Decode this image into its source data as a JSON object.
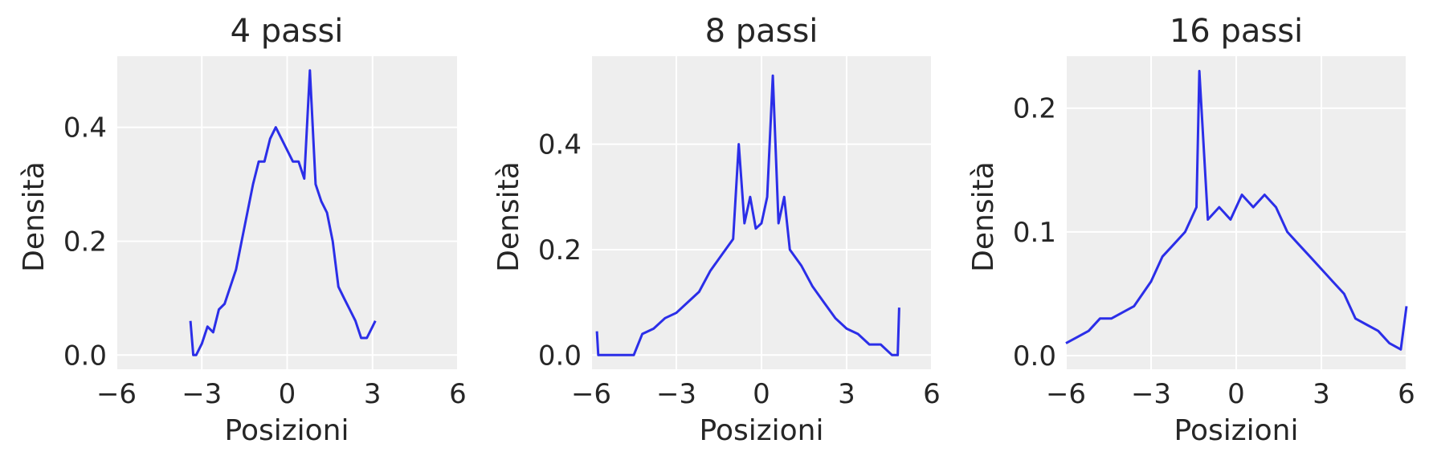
{
  "figure": {
    "colors": {
      "series": "#2b2ee8",
      "background": "#eeeeee",
      "grid": "#ffffff",
      "text": "#262626"
    }
  },
  "chart_data": [
    {
      "type": "line",
      "title": "4 passi",
      "xlabel": "Posizioni",
      "ylabel": "Densità",
      "xlim": [
        -6,
        6
      ],
      "ylim": [
        -0.025,
        0.525
      ],
      "xticks": [
        -6,
        -3,
        0,
        3,
        6
      ],
      "xtick_labels": [
        "−6",
        "−3",
        "0",
        "3",
        "6"
      ],
      "yticks": [
        0.0,
        0.2,
        0.4
      ],
      "ytick_labels": [
        "0.0",
        "0.2",
        "0.4"
      ],
      "grid": true,
      "x": [
        -3.4,
        -3.3,
        -3.2,
        -3.0,
        -2.8,
        -2.6,
        -2.4,
        -2.2,
        -2.0,
        -1.8,
        -1.6,
        -1.4,
        -1.2,
        -1.0,
        -0.8,
        -0.6,
        -0.4,
        -0.2,
        0.0,
        0.2,
        0.4,
        0.6,
        0.8,
        1.0,
        1.2,
        1.4,
        1.6,
        1.8,
        2.0,
        2.2,
        2.4,
        2.6,
        2.8,
        3.0,
        3.1
      ],
      "y": [
        0.06,
        0.0,
        0.0,
        0.02,
        0.05,
        0.04,
        0.08,
        0.09,
        0.12,
        0.15,
        0.2,
        0.25,
        0.3,
        0.34,
        0.34,
        0.38,
        0.4,
        0.38,
        0.36,
        0.34,
        0.34,
        0.31,
        0.5,
        0.3,
        0.27,
        0.25,
        0.2,
        0.12,
        0.1,
        0.08,
        0.06,
        0.03,
        0.03,
        0.05,
        0.06
      ]
    },
    {
      "type": "line",
      "title": "8 passi",
      "xlabel": "Posizioni",
      "ylabel": "Densità",
      "xlim": [
        -6,
        6
      ],
      "ylim": [
        -0.027,
        0.567
      ],
      "xticks": [
        -6,
        -3,
        0,
        3,
        6
      ],
      "xtick_labels": [
        "−6",
        "−3",
        "0",
        "3",
        "6"
      ],
      "yticks": [
        0.0,
        0.2,
        0.4
      ],
      "ytick_labels": [
        "0.0",
        "0.2",
        "0.4"
      ],
      "grid": true,
      "x": [
        -5.8,
        -5.75,
        -4.5,
        -4.2,
        -3.8,
        -3.4,
        -3.0,
        -2.6,
        -2.2,
        -1.8,
        -1.4,
        -1.0,
        -0.8,
        -0.6,
        -0.4,
        -0.2,
        0.0,
        0.2,
        0.4,
        0.6,
        0.8,
        1.0,
        1.4,
        1.8,
        2.2,
        2.6,
        3.0,
        3.4,
        3.8,
        4.2,
        4.6,
        4.8,
        4.85
      ],
      "y": [
        0.045,
        0.0,
        0.0,
        0.04,
        0.05,
        0.07,
        0.08,
        0.1,
        0.12,
        0.16,
        0.19,
        0.22,
        0.4,
        0.25,
        0.3,
        0.24,
        0.25,
        0.3,
        0.53,
        0.25,
        0.3,
        0.2,
        0.17,
        0.13,
        0.1,
        0.07,
        0.05,
        0.04,
        0.02,
        0.02,
        0.0,
        0.0,
        0.09
      ]
    },
    {
      "type": "line",
      "title": "16 passi",
      "xlabel": "Posizioni",
      "ylabel": "Densità",
      "xlim": [
        -6,
        6
      ],
      "ylim": [
        -0.011,
        0.242
      ],
      "xticks": [
        -6,
        -3,
        0,
        3,
        6
      ],
      "xtick_labels": [
        "−6",
        "−3",
        "0",
        "3",
        "6"
      ],
      "yticks": [
        0.0,
        0.1,
        0.2
      ],
      "ytick_labels": [
        "0.0",
        "0.1",
        "0.2"
      ],
      "grid": true,
      "x": [
        -6.0,
        -5.6,
        -5.2,
        -4.8,
        -4.4,
        -4.0,
        -3.6,
        -3.3,
        -3.0,
        -2.6,
        -2.2,
        -1.8,
        -1.4,
        -1.3,
        -1.0,
        -0.6,
        -0.2,
        0.2,
        0.6,
        1.0,
        1.4,
        1.8,
        2.2,
        2.6,
        3.0,
        3.4,
        3.8,
        4.2,
        4.6,
        5.0,
        5.4,
        5.8,
        6.0
      ],
      "y": [
        0.01,
        0.015,
        0.02,
        0.03,
        0.03,
        0.035,
        0.04,
        0.05,
        0.06,
        0.08,
        0.09,
        0.1,
        0.12,
        0.23,
        0.11,
        0.12,
        0.11,
        0.13,
        0.12,
        0.13,
        0.12,
        0.1,
        0.09,
        0.08,
        0.07,
        0.06,
        0.05,
        0.03,
        0.025,
        0.02,
        0.01,
        0.005,
        0.04
      ]
    }
  ]
}
